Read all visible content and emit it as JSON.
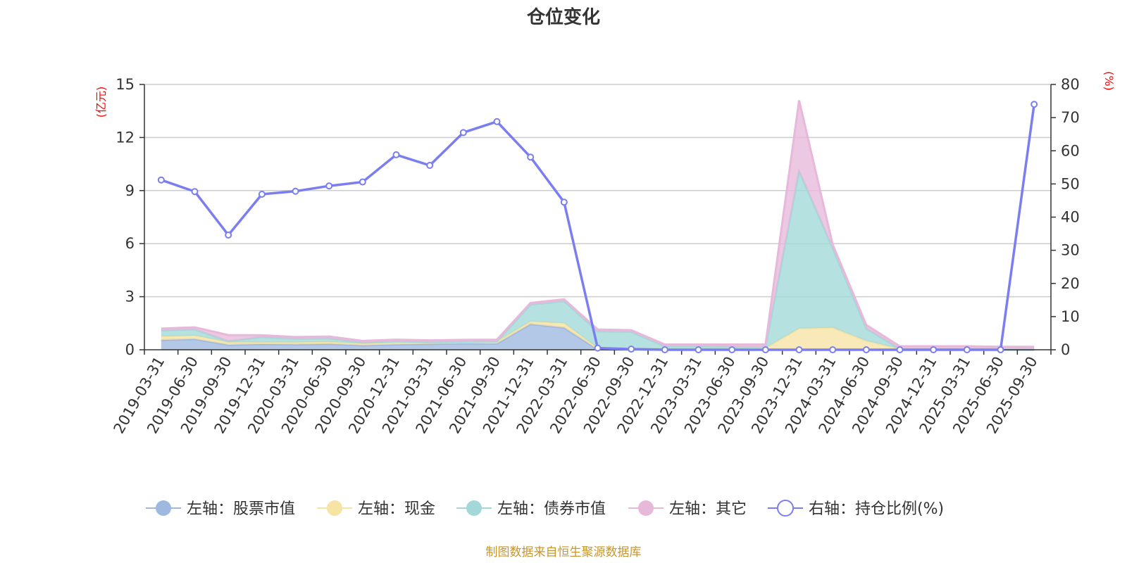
{
  "chart_data": {
    "type": "area",
    "title": "仓位变化",
    "left_axis_unit": "(亿元)",
    "right_axis_unit": "(%)",
    "left_ylim": [
      0,
      15
    ],
    "left_ticks": [
      "0",
      "3",
      "6",
      "9",
      "12",
      "15"
    ],
    "right_ylim": [
      0,
      80
    ],
    "right_ticks": [
      "0",
      "10",
      "20",
      "30",
      "40",
      "50",
      "60",
      "70",
      "80"
    ],
    "categories": [
      "2019-03-31",
      "2019-06-30",
      "2019-09-30",
      "2019-12-31",
      "2020-03-31",
      "2020-06-30",
      "2020-09-30",
      "2020-12-31",
      "2021-03-31",
      "2021-06-30",
      "2021-09-30",
      "2021-12-31",
      "2022-03-31",
      "2022-06-30",
      "2022-09-30",
      "2022-12-31",
      "2023-03-31",
      "2023-06-30",
      "2023-09-30",
      "2023-12-31",
      "2024-03-31",
      "2024-06-30",
      "2024-09-30",
      "2024-12-31",
      "2025-03-31",
      "2025-06-30",
      "2025-09-30"
    ],
    "stacked_series": [
      {
        "name": "左轴：股票市值",
        "color": "#9eb8e0",
        "values": [
          0.55,
          0.6,
          0.28,
          0.32,
          0.3,
          0.33,
          0.25,
          0.3,
          0.33,
          0.36,
          0.35,
          1.45,
          1.25,
          0.02,
          0.01,
          0,
          0,
          0,
          0,
          0,
          0,
          0,
          0,
          0,
          0,
          0,
          0
        ]
      },
      {
        "name": "左轴：现金",
        "color": "#f7e3a4",
        "values": [
          0.2,
          0.2,
          0.15,
          0.1,
          0.12,
          0.12,
          0.1,
          0.12,
          0.1,
          0.1,
          0.12,
          0.15,
          0.25,
          0.08,
          0.05,
          0.05,
          0.05,
          0.05,
          0.1,
          1.2,
          1.25,
          0.5,
          0.05,
          0.05,
          0.05,
          0.05,
          0.05
        ]
      },
      {
        "name": "左轴：债券市值",
        "color": "#a2d9d8",
        "values": [
          0.35,
          0.35,
          0.05,
          0.3,
          0.2,
          0.2,
          0.05,
          0.05,
          0,
          0,
          0,
          0.95,
          1.25,
          0.95,
          0.95,
          0.15,
          0.15,
          0.12,
          0.05,
          8.9,
          4.5,
          0.7,
          0,
          0,
          0,
          0,
          0
        ]
      },
      {
        "name": "左轴：其它",
        "color": "#e7b8da",
        "values": [
          0.1,
          0.12,
          0.35,
          0.1,
          0.1,
          0.1,
          0.1,
          0.1,
          0.1,
          0.1,
          0.1,
          0.1,
          0.1,
          0.1,
          0.1,
          0.1,
          0.1,
          0.13,
          0.15,
          4.0,
          0.2,
          0.2,
          0.15,
          0.15,
          0.15,
          0.12,
          0.12
        ]
      }
    ],
    "line_series": {
      "name": "右轴：持仓比例(%)",
      "color": "#7b7ef0",
      "values": [
        51.2,
        47.7,
        34.6,
        46.9,
        47.8,
        49.4,
        50.6,
        58.8,
        55.6,
        65.5,
        68.8,
        58.1,
        44.5,
        0.5,
        0.2,
        0,
        0,
        0,
        0,
        0,
        0,
        0,
        0,
        0,
        0,
        0,
        74.0
      ]
    },
    "legend": [
      {
        "label": "左轴：股票市值",
        "color": "#9eb8e0",
        "hollow": false
      },
      {
        "label": "左轴：现金",
        "color": "#f7e3a4",
        "hollow": false
      },
      {
        "label": "左轴：债券市值",
        "color": "#a2d9d8",
        "hollow": false
      },
      {
        "label": "左轴：其它",
        "color": "#e7b8da",
        "hollow": false
      },
      {
        "label": "右轴：持仓比例(%)",
        "color": "#7b7ef0",
        "hollow": true
      }
    ],
    "source_note": "制图数据来自恒生聚源数据库",
    "grid": true,
    "legend_position": "bottom"
  }
}
